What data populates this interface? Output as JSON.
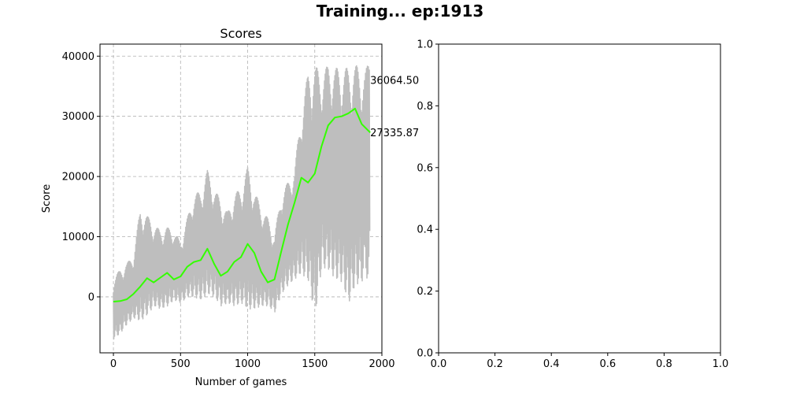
{
  "figure": {
    "suptitle": "Training... ep:1913"
  },
  "colors": {
    "raw": "#bebebe",
    "avg": "#33ff00",
    "grid": "#b0b0b0"
  },
  "chart_data": [
    {
      "type": "line",
      "title": "Scores",
      "xlabel": "Number of games",
      "ylabel": "Score",
      "xlim": [
        -100,
        2000
      ],
      "ylim": [
        -9300,
        42000
      ],
      "xticks": [
        0,
        500,
        1000,
        1500,
        2000
      ],
      "yticks": [
        0,
        10000,
        20000,
        30000,
        40000
      ],
      "grid": true,
      "grid_style": "dashed",
      "annotations": [
        {
          "text": "36064.50",
          "x": 1913,
          "y": 36064.5
        },
        {
          "text": "27335.87",
          "x": 1913,
          "y": 27335.87
        }
      ],
      "series": [
        {
          "style": "raw-score-envelope",
          "x": [
            0,
            50,
            100,
            150,
            200,
            250,
            300,
            350,
            400,
            450,
            500,
            550,
            600,
            650,
            700,
            750,
            800,
            850,
            900,
            950,
            1000,
            1050,
            1100,
            1150,
            1200,
            1250,
            1300,
            1350,
            1400,
            1450,
            1500,
            1550,
            1600,
            1650,
            1700,
            1750,
            1800,
            1850,
            1913
          ],
          "high": [
            3000,
            4500,
            5500,
            7000,
            14500,
            13500,
            12000,
            11000,
            11500,
            11000,
            9000,
            13000,
            17000,
            17500,
            21000,
            18000,
            16000,
            14000,
            17000,
            18000,
            21500,
            17500,
            15000,
            13000,
            10000,
            17000,
            19000,
            21000,
            31000,
            37000,
            38500,
            37000,
            38500,
            38000,
            38000,
            38000,
            38500,
            38000,
            38500
          ],
          "low": [
            -7000,
            -6000,
            -4500,
            -3500,
            -4000,
            -3000,
            -1500,
            -2000,
            -1500,
            -500,
            -1000,
            0,
            0,
            -500,
            500,
            0,
            -1500,
            -1000,
            -1500,
            -1000,
            -2000,
            -2000,
            -1500,
            -1500,
            -2500,
            500,
            2000,
            3000,
            4000,
            2500,
            -3000,
            5000,
            4500,
            3000,
            2500,
            -1000,
            2000,
            2500,
            3500
          ]
        },
        {
          "name": "",
          "style": "moving-average",
          "x": [
            0,
            50,
            100,
            150,
            200,
            250,
            300,
            350,
            400,
            450,
            500,
            550,
            600,
            650,
            700,
            750,
            800,
            850,
            900,
            950,
            1000,
            1050,
            1100,
            1150,
            1200,
            1250,
            1300,
            1350,
            1400,
            1450,
            1500,
            1550,
            1600,
            1650,
            1700,
            1750,
            1800,
            1850,
            1913
          ],
          "y": [
            -800,
            -700,
            -400,
            500,
            1700,
            3100,
            2400,
            3200,
            4000,
            2900,
            3400,
            5000,
            5800,
            6100,
            8000,
            5500,
            3500,
            4200,
            5800,
            6600,
            8800,
            7300,
            4200,
            2400,
            2900,
            7500,
            12000,
            15700,
            19800,
            19000,
            20500,
            25000,
            28500,
            29800,
            30000,
            30500,
            31300,
            28700,
            27300
          ]
        }
      ]
    },
    {
      "type": "line",
      "title": "",
      "xlim": [
        0,
        1
      ],
      "ylim": [
        0,
        1
      ],
      "xticks": [
        0,
        0.2,
        0.4,
        0.6,
        0.8,
        1
      ],
      "yticks": [
        0,
        0.2,
        0.4,
        0.6,
        0.8,
        1
      ],
      "xticklabels": [
        "0.0",
        "0.2",
        "0.4",
        "0.6",
        "0.8",
        "1.0"
      ],
      "yticklabels": [
        "0.0",
        "0.2",
        "0.4",
        "0.6",
        "0.8",
        "1.0"
      ],
      "grid": false,
      "series": []
    }
  ]
}
